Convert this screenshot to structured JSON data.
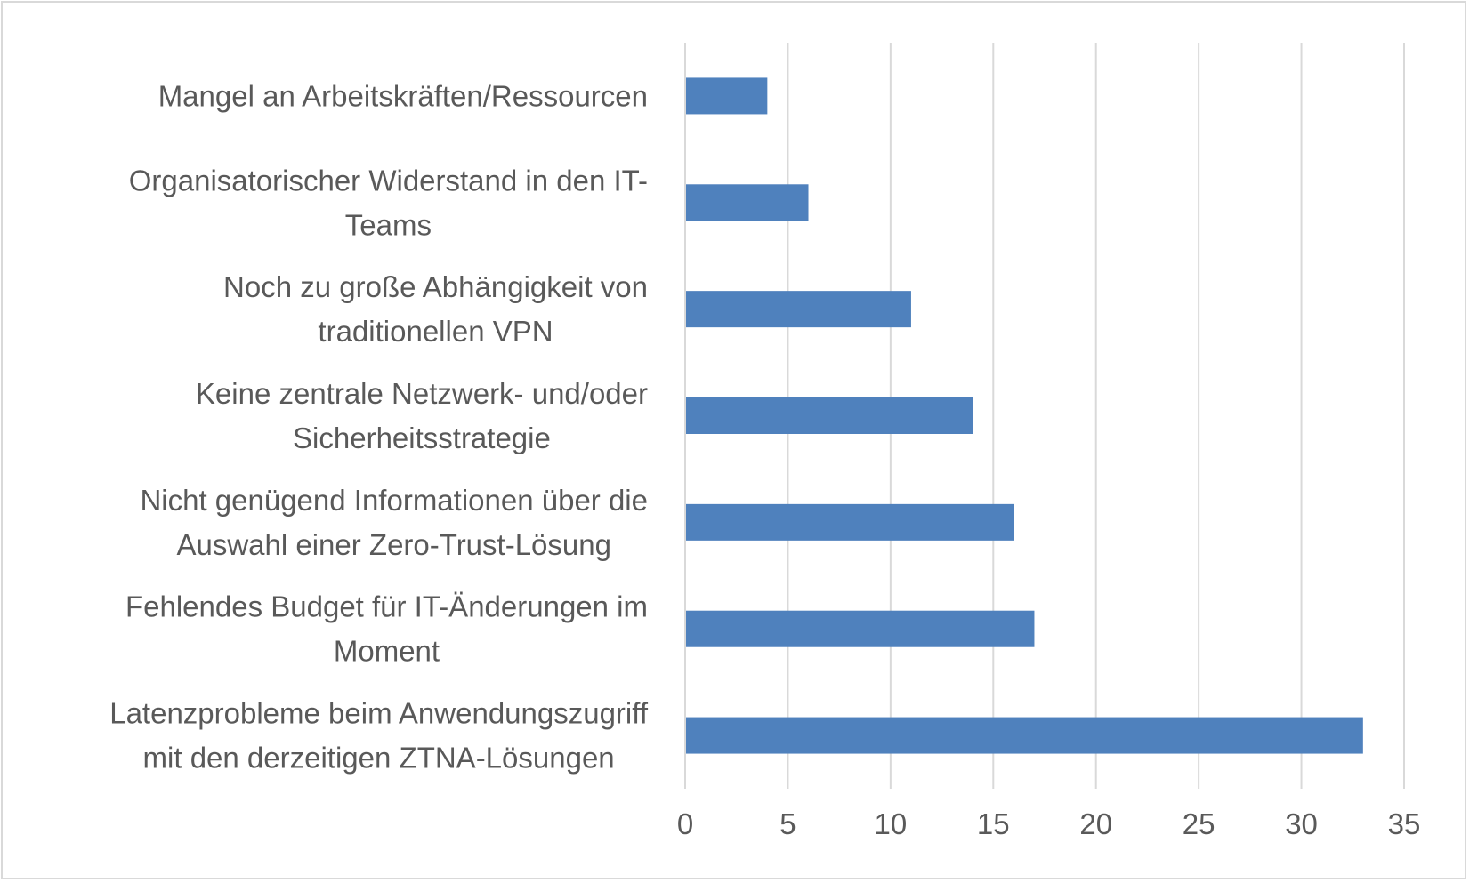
{
  "chart_data": {
    "type": "bar",
    "orientation": "horizontal",
    "title": "",
    "xlabel": "",
    "ylabel": "",
    "categories": [
      [
        "Mangel an Arbeitskräften/Ressourcen"
      ],
      [
        "Organisatorischer Widerstand in den IT-",
        "Teams"
      ],
      [
        "Noch zu große Abhängigkeit von",
        "traditionellen VPN"
      ],
      [
        "Keine zentrale Netzwerk- und/oder",
        "Sicherheitsstrategie"
      ],
      [
        "Nicht genügend Informationen über die",
        "Auswahl einer Zero-Trust-Lösung"
      ],
      [
        "Fehlendes Budget für IT-Änderungen im",
        "Moment"
      ],
      [
        "Latenzprobleme beim Anwendungszugriff",
        "mit den derzeitigen ZTNA-Lösungen"
      ]
    ],
    "values": [
      4,
      6,
      11,
      14,
      16,
      17,
      33
    ],
    "xlim": [
      0,
      35
    ],
    "xticks": [
      "0",
      "5",
      "10",
      "15",
      "20",
      "25",
      "30",
      "35"
    ],
    "grid": "vertical",
    "legend": "none",
    "bar_color": "#4f81bd",
    "grid_color": "#d9d9d9",
    "text_color": "#595959"
  }
}
